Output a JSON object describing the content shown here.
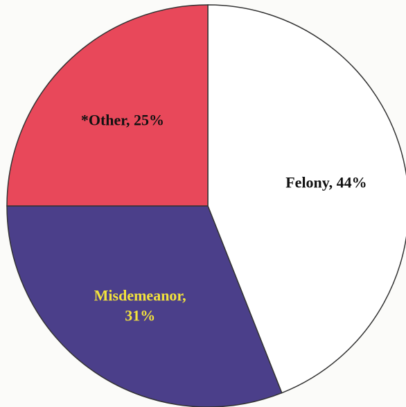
{
  "chart_data": {
    "type": "pie",
    "values": [
      44,
      31,
      25
    ],
    "value_labels": [
      "Felony, 44%",
      "Misdemeanor, 31%",
      "*Other, 25%"
    ],
    "colors": [
      "#ffffff",
      "#4b3f8a",
      "#e8485a"
    ],
    "label_colors": [
      "#111111",
      "#f2e23c",
      "#111111"
    ]
  }
}
